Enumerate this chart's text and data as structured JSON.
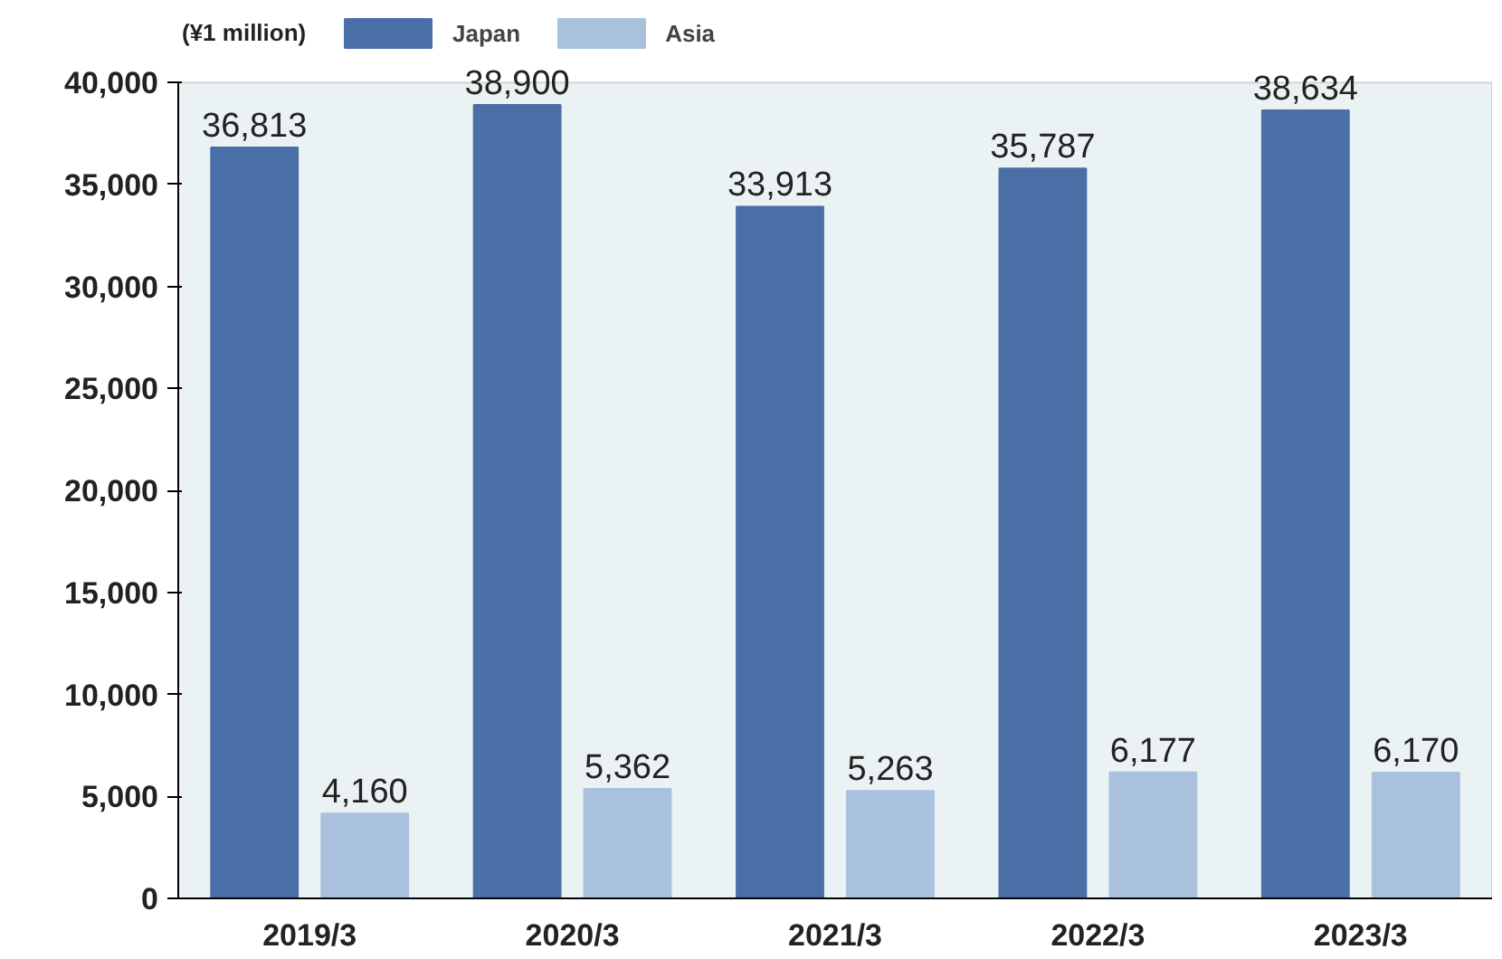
{
  "chart_data": {
    "type": "bar",
    "ylabel": "(¥1 million)",
    "categories": [
      "2019/3",
      "2020/3",
      "2021/3",
      "2022/3",
      "2023/3"
    ],
    "series": [
      {
        "name": "Japan",
        "color": "#4a6ea6",
        "values": [
          36813,
          38900,
          33913,
          35787,
          38634
        ],
        "value_labels": [
          "36,813",
          "38,900",
          "33,913",
          "35,787",
          "38,634"
        ]
      },
      {
        "name": "Asia",
        "color": "#a9c1dd",
        "values": [
          4160,
          5362,
          5263,
          6177,
          6170
        ],
        "value_labels": [
          "4,160",
          "5,362",
          "5,263",
          "6,177",
          "6,170"
        ]
      }
    ],
    "ylim": [
      0,
      40000
    ],
    "yticks": [
      0,
      {
        "value": 5000,
        "label": "5,000"
      },
      {
        "value": 10000,
        "label": "10,000"
      },
      {
        "value": 15000,
        "label": "15,000"
      },
      {
        "value": 20000,
        "label": "20,000"
      },
      {
        "value": 25000,
        "label": "25,000"
      },
      {
        "value": 30000,
        "label": "30,000"
      },
      {
        "value": 35000,
        "label": "35,000"
      },
      {
        "value": 40000,
        "label": "40,000"
      }
    ],
    "legend": "top left"
  }
}
